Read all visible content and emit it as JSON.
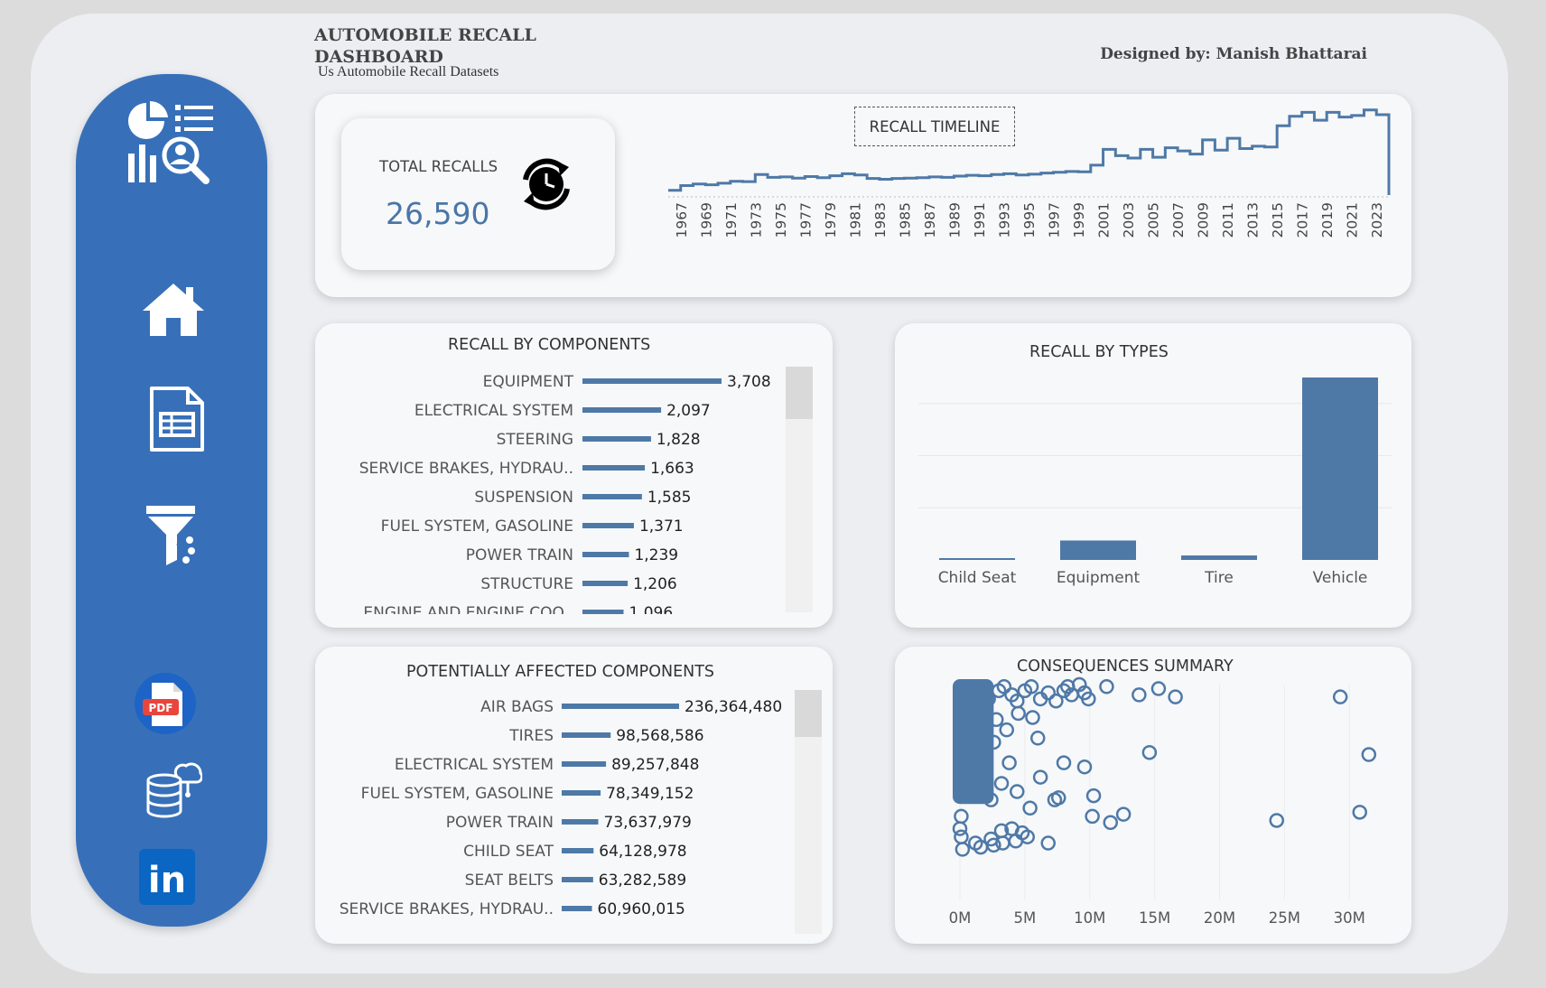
{
  "header": {
    "title": "AUTOMOBILE RECALL DASHBOARD",
    "subtitle": "Us Automobile Recall Datasets",
    "designer": "Designed by: Manish Bhattarai"
  },
  "sidebar": {
    "items": [
      {
        "name": "analytics-logo-icon"
      },
      {
        "name": "home-icon"
      },
      {
        "name": "report-sheet-icon"
      },
      {
        "name": "filter-funnel-icon"
      },
      {
        "name": "pdf-icon",
        "label": "PDF"
      },
      {
        "name": "database-cloud-icon"
      },
      {
        "name": "linkedin-icon",
        "label": "in"
      }
    ]
  },
  "kpi": {
    "label": "TOTAL RECALLS",
    "value": "26,590",
    "icon": "refresh-clock-icon"
  },
  "colors": {
    "accent": "#4e79a7",
    "sidebar": "#3770b9",
    "card": "#f7f8f9"
  },
  "chart_data": [
    {
      "id": "timeline",
      "type": "line",
      "title": "RECALL TIMELINE",
      "x_ticks": [
        "1967",
        "1969",
        "1971",
        "1973",
        "1975",
        "1977",
        "1979",
        "1981",
        "1983",
        "1985",
        "1987",
        "1989",
        "1991",
        "1993",
        "1995",
        "1997",
        "1999",
        "2001",
        "2003",
        "2005",
        "2007",
        "2009",
        "2011",
        "2013",
        "2015",
        "2017",
        "2019",
        "2021",
        "2023"
      ],
      "x": [
        1966,
        1967,
        1968,
        1969,
        1970,
        1971,
        1972,
        1973,
        1974,
        1975,
        1976,
        1977,
        1978,
        1979,
        1980,
        1981,
        1982,
        1983,
        1984,
        1985,
        1986,
        1987,
        1988,
        1989,
        1990,
        1991,
        1992,
        1993,
        1994,
        1995,
        1996,
        1997,
        1998,
        1999,
        2000,
        2001,
        2002,
        2003,
        2004,
        2005,
        2006,
        2007,
        2008,
        2009,
        2010,
        2011,
        2012,
        2013,
        2014,
        2015,
        2016,
        2017,
        2018,
        2019,
        2020,
        2021,
        2022,
        2023
      ],
      "values": [
        60,
        120,
        140,
        130,
        150,
        175,
        170,
        260,
        225,
        230,
        215,
        235,
        220,
        245,
        270,
        255,
        210,
        200,
        210,
        215,
        220,
        230,
        225,
        240,
        250,
        245,
        260,
        270,
        255,
        265,
        280,
        290,
        300,
        295,
        380,
        580,
        500,
        470,
        580,
        480,
        600,
        560,
        520,
        700,
        570,
        720,
        590,
        620,
        610,
        880,
        1000,
        1050,
        950,
        1050,
        990,
        1010,
        1080,
        1020
      ],
      "ylim": [
        0,
        1100
      ],
      "grid": false,
      "legend": "none"
    },
    {
      "id": "components",
      "type": "bar",
      "orientation": "horizontal",
      "title": "RECALL BY COMPONENTS",
      "categories": [
        "EQUIPMENT",
        "ELECTRICAL SYSTEM",
        "STEERING",
        "SERVICE BRAKES, HYDRAU..",
        "SUSPENSION",
        "FUEL SYSTEM, GASOLINE",
        "POWER TRAIN",
        "STRUCTURE",
        "ENGINE AND ENGINE COO.."
      ],
      "values": [
        3708,
        2097,
        1828,
        1663,
        1585,
        1371,
        1239,
        1206,
        1096
      ],
      "labels": [
        "3,708",
        "2,097",
        "1,828",
        "1,663",
        "1,585",
        "1,371",
        "1,239",
        "1,206",
        "1,096"
      ],
      "xlim": [
        0,
        3708
      ]
    },
    {
      "id": "types",
      "type": "bar",
      "title": "RECALL BY TYPES",
      "categories": [
        "Child Seat",
        "Equipment",
        "Tire",
        "Vehicle"
      ],
      "values": [
        40,
        1480,
        340,
        13900
      ],
      "ylim": [
        0,
        15000
      ],
      "grid": true
    },
    {
      "id": "affected",
      "type": "bar",
      "orientation": "horizontal",
      "title": "POTENTIALLY AFFECTED COMPONENTS",
      "categories": [
        "AIR BAGS",
        "TIRES",
        "ELECTRICAL SYSTEM",
        "FUEL SYSTEM, GASOLINE",
        "POWER TRAIN",
        "CHILD SEAT",
        "SEAT BELTS",
        "SERVICE BRAKES, HYDRAU.."
      ],
      "values": [
        236364480,
        98568586,
        89257848,
        78349152,
        73637979,
        64128978,
        63282589,
        60960015
      ],
      "labels": [
        "236,364,480",
        "98,568,586",
        "89,257,848",
        "78,349,152",
        "73,637,979",
        "64,128,978",
        "63,282,589",
        "60,960,015"
      ],
      "xlim": [
        0,
        236364480
      ]
    },
    {
      "id": "consequences",
      "type": "scatter",
      "title": "CONSEQUENCES SUMMARY",
      "x_ticks": [
        "0M",
        "5M",
        "10M",
        "15M",
        "20M",
        "25M",
        "30M"
      ],
      "xlim": [
        0,
        32000000
      ],
      "ylim": [
        0,
        1
      ],
      "grid": true,
      "points": [
        [
          0.1,
          0.97
        ],
        [
          0.3,
          0.95
        ],
        [
          0.6,
          0.9
        ],
        [
          1.0,
          0.92
        ],
        [
          1.5,
          0.96
        ],
        [
          2.2,
          0.93
        ],
        [
          3.0,
          0.97
        ],
        [
          3.4,
          0.99
        ],
        [
          4.0,
          0.95
        ],
        [
          4.4,
          0.92
        ],
        [
          5.0,
          0.97
        ],
        [
          5.5,
          0.99
        ],
        [
          6.2,
          0.93
        ],
        [
          6.8,
          0.96
        ],
        [
          7.4,
          0.92
        ],
        [
          8.0,
          0.97
        ],
        [
          8.3,
          0.99
        ],
        [
          8.6,
          0.95
        ],
        [
          9.2,
          1.0
        ],
        [
          9.6,
          0.96
        ],
        [
          9.9,
          0.93
        ],
        [
          11.3,
          0.99
        ],
        [
          13.8,
          0.95
        ],
        [
          15.3,
          0.98
        ],
        [
          16.6,
          0.94
        ],
        [
          29.3,
          0.94
        ],
        [
          0.5,
          0.85
        ],
        [
          1.2,
          0.8
        ],
        [
          2.0,
          0.87
        ],
        [
          2.8,
          0.83
        ],
        [
          3.6,
          0.78
        ],
        [
          4.5,
          0.86
        ],
        [
          5.6,
          0.84
        ],
        [
          6.0,
          0.74
        ],
        [
          0.8,
          0.7
        ],
        [
          1.9,
          0.66
        ],
        [
          2.6,
          0.72
        ],
        [
          3.8,
          0.62
        ],
        [
          0.2,
          0.6
        ],
        [
          8.0,
          0.62
        ],
        [
          9.6,
          0.6
        ],
        [
          14.6,
          0.67
        ],
        [
          31.5,
          0.66
        ],
        [
          0.4,
          0.47
        ],
        [
          1.4,
          0.5
        ],
        [
          2.4,
          0.44
        ],
        [
          3.2,
          0.52
        ],
        [
          4.4,
          0.48
        ],
        [
          5.4,
          0.4
        ],
        [
          6.2,
          0.55
        ],
        [
          7.3,
          0.44
        ],
        [
          7.6,
          0.45
        ],
        [
          10.3,
          0.46
        ],
        [
          10.2,
          0.36
        ],
        [
          11.6,
          0.33
        ],
        [
          12.6,
          0.37
        ],
        [
          24.4,
          0.34
        ],
        [
          30.8,
          0.38
        ],
        [
          0.0,
          0.3
        ],
        [
          0.1,
          0.26
        ],
        [
          1.2,
          0.23
        ],
        [
          2.4,
          0.25
        ],
        [
          3.2,
          0.29
        ],
        [
          4.0,
          0.3
        ],
        [
          4.3,
          0.24
        ],
        [
          4.8,
          0.28
        ],
        [
          5.2,
          0.26
        ],
        [
          6.8,
          0.23
        ],
        [
          0.2,
          0.2
        ],
        [
          1.6,
          0.21
        ],
        [
          2.6,
          0.22
        ],
        [
          3.3,
          0.23
        ],
        [
          0.1,
          0.36
        ]
      ],
      "dense_band": {
        "x_from": 0,
        "x_to": 2.6,
        "y_from": 0.42,
        "y_to": 1.0
      }
    }
  ]
}
